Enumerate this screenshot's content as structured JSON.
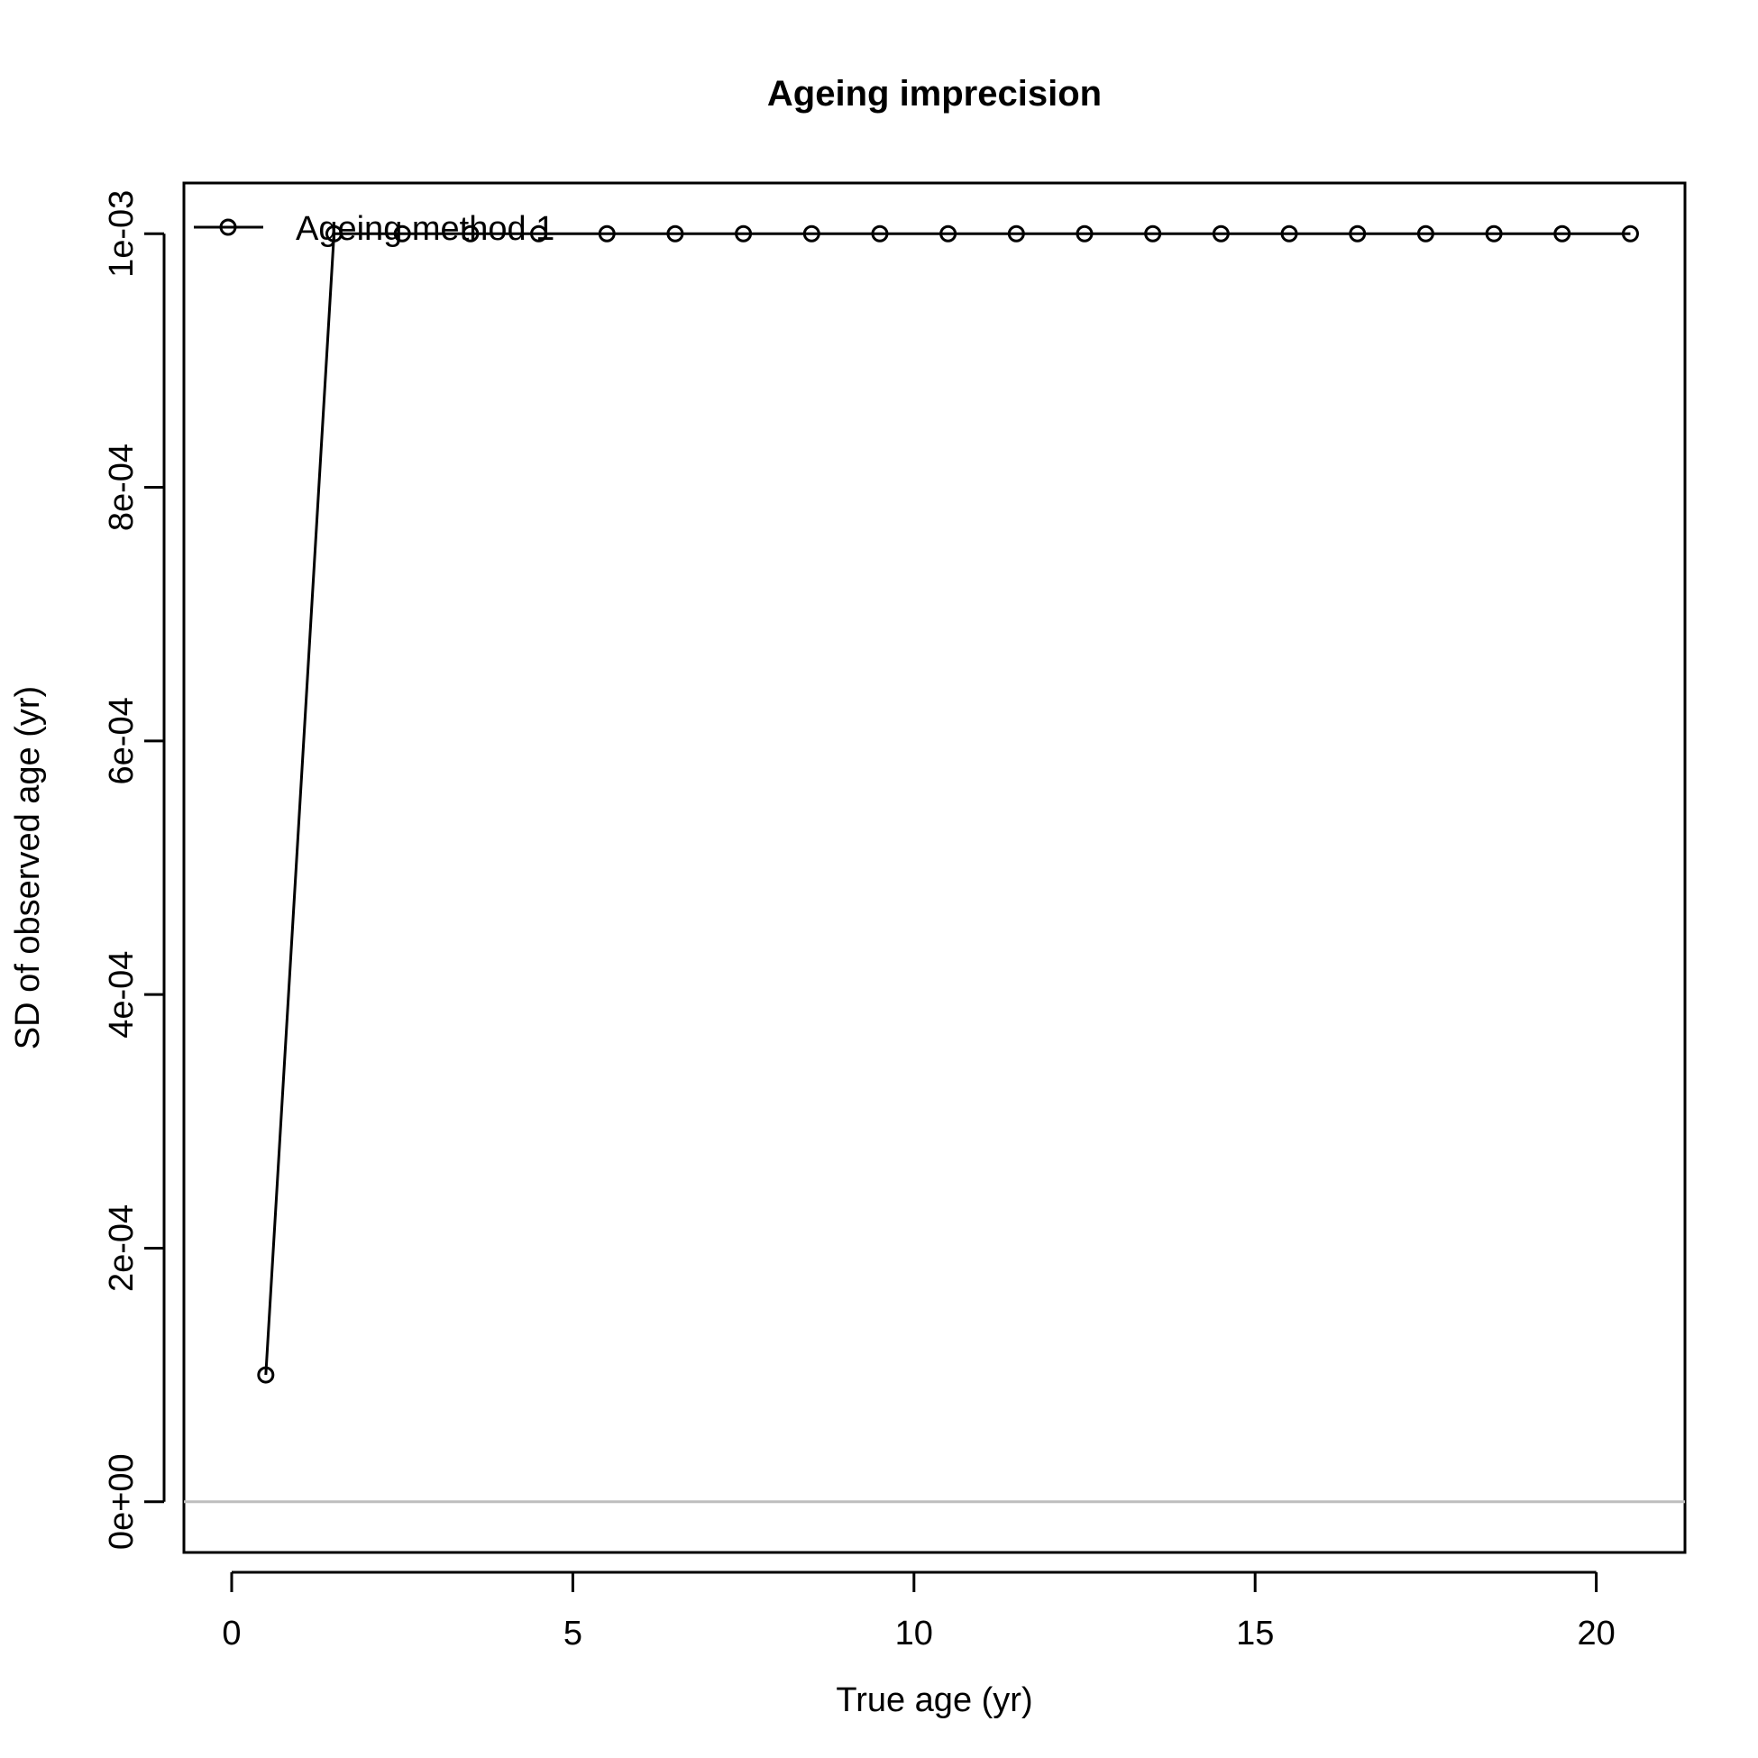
{
  "chart_data": {
    "type": "line",
    "title": "Ageing imprecision",
    "xlabel": "True age (yr)",
    "ylabel": "SD of observed age (yr)",
    "xlim": [
      -0.7,
      21.3
    ],
    "ylim": [
      -4e-05,
      0.00104
    ],
    "x_ticks": [
      0,
      5,
      10,
      15,
      20
    ],
    "x_tick_labels": [
      "0",
      "5",
      "10",
      "15",
      "20"
    ],
    "y_ticks": [
      0,
      0.0002,
      0.0004,
      0.0006,
      0.0008,
      0.001
    ],
    "y_tick_labels": [
      "0e+00",
      "2e-04",
      "4e-04",
      "6e-04",
      "8e-04",
      "1e-03"
    ],
    "reference_line": {
      "y": 0,
      "color": "#bebebe"
    },
    "grid": false,
    "legend_position": "top-left",
    "series": [
      {
        "name": "Ageing method 1",
        "color": "#000000",
        "marker": "open-circle",
        "x": [
          0.5,
          1.5,
          2.5,
          3.5,
          4.5,
          5.5,
          6.5,
          7.5,
          8.5,
          9.5,
          10.5,
          11.5,
          12.5,
          13.5,
          14.5,
          15.5,
          16.5,
          17.5,
          18.5,
          19.5,
          20.5
        ],
        "y": [
          0.0001,
          0.001,
          0.001,
          0.001,
          0.001,
          0.001,
          0.001,
          0.001,
          0.001,
          0.001,
          0.001,
          0.001,
          0.001,
          0.001,
          0.001,
          0.001,
          0.001,
          0.001,
          0.001,
          0.001,
          0.001
        ]
      }
    ]
  }
}
